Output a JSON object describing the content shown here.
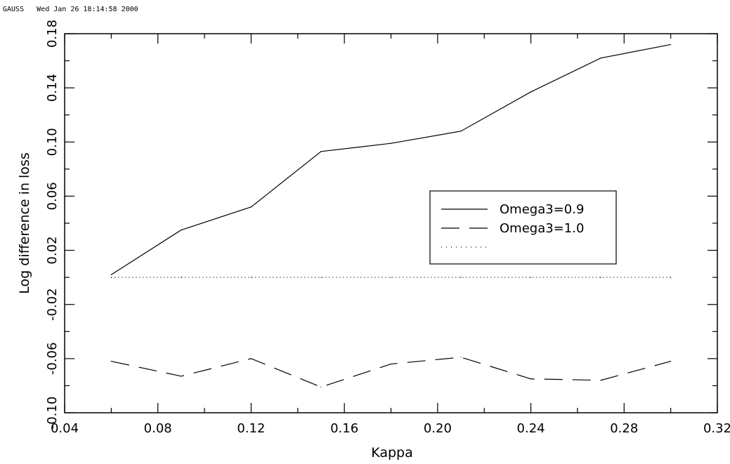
{
  "header": {
    "program": "GAUSS",
    "timestamp": "Wed Jan 26 18:14:58 2000"
  },
  "chart_data": {
    "type": "line",
    "title": "",
    "xlabel": "Kappa",
    "ylabel": "Log difference in loss",
    "xlim": [
      0.04,
      0.32
    ],
    "ylim": [
      -0.1,
      0.18
    ],
    "x_ticks": [
      "0.04",
      "0.08",
      "0.12",
      "0.16",
      "0.20",
      "0.24",
      "0.28",
      "0.32"
    ],
    "y_ticks": [
      "-0.10",
      "-0.06",
      "-0.02",
      "0.02",
      "0.06",
      "0.10",
      "0.14",
      "0.18"
    ],
    "x": [
      0.06,
      0.09,
      0.12,
      0.15,
      0.18,
      0.21,
      0.24,
      0.27,
      0.3
    ],
    "series": [
      {
        "name": "Omega3=0.9",
        "style": "solid",
        "values": [
          0.002,
          0.035,
          0.052,
          0.093,
          0.099,
          0.108,
          0.137,
          0.162,
          0.172
        ]
      },
      {
        "name": "Omega3=1.0",
        "style": "dashed",
        "values": [
          -0.062,
          -0.073,
          -0.06,
          -0.081,
          -0.064,
          -0.059,
          -0.075,
          -0.076,
          -0.062
        ]
      },
      {
        "name": "",
        "style": "dotted",
        "values": [
          0.0,
          0.0,
          0.0,
          0.0,
          0.0,
          0.0,
          0.0,
          0.0,
          0.0
        ]
      }
    ],
    "legend_position": "right",
    "grid": false,
    "line_color": "#000000"
  }
}
